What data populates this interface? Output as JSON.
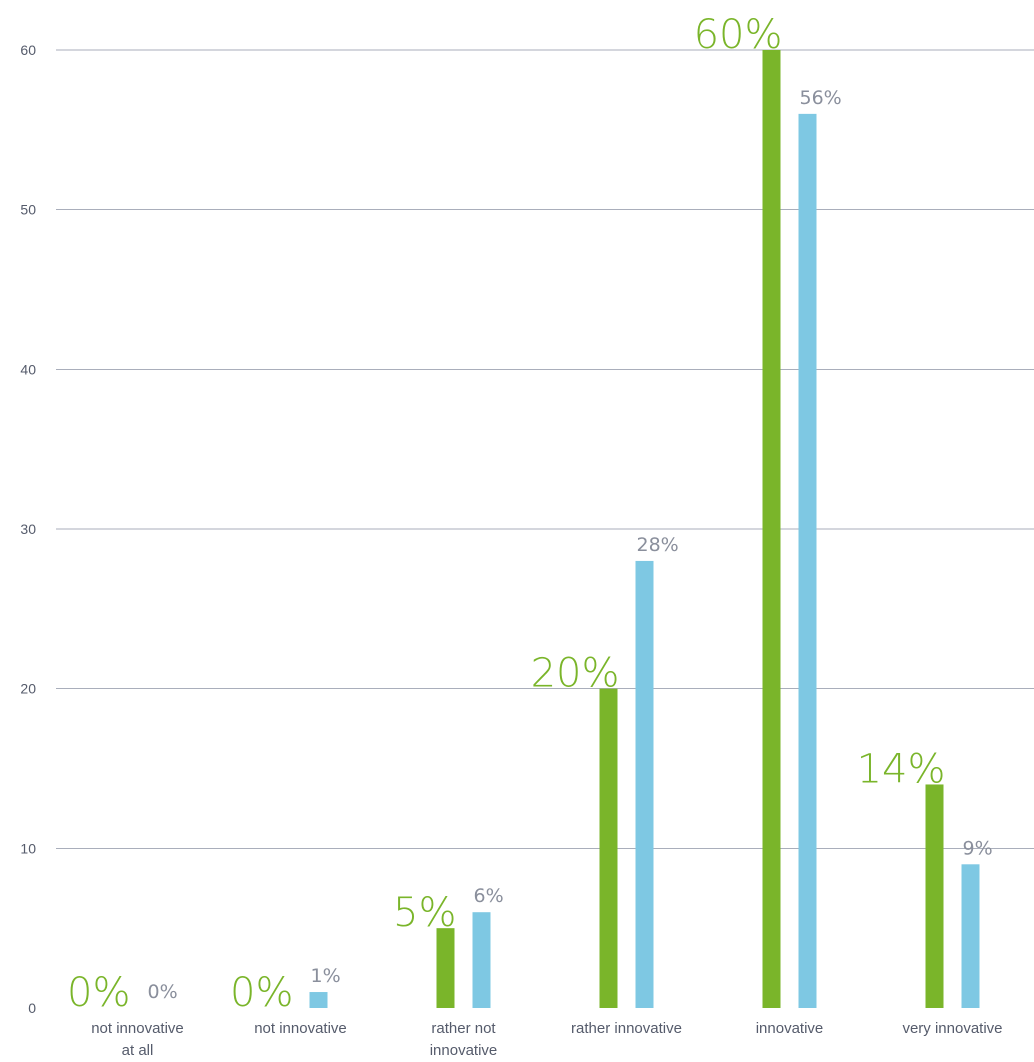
{
  "chart_data": {
    "type": "bar",
    "categories": [
      [
        "not innovative",
        "at all"
      ],
      [
        "not innovative"
      ],
      [
        "rather not",
        "innovative"
      ],
      [
        "rather innovative"
      ],
      [
        "innovative"
      ],
      [
        "very innovative"
      ]
    ],
    "series": [
      {
        "values": [
          0,
          0,
          5,
          20,
          60,
          14
        ],
        "labels": [
          "0%",
          "0%",
          "5%",
          "20%",
          "60%",
          "14%"
        ],
        "color": "#7ab52a"
      },
      {
        "values": [
          0,
          1,
          6,
          28,
          56,
          9
        ],
        "labels": [
          "0%",
          "1%",
          "6%",
          "28%",
          "56%",
          "9%"
        ],
        "color": "#7ec8e3"
      }
    ],
    "ylim": [
      0,
      60
    ],
    "yticks": [
      "0",
      "10",
      "20",
      "30",
      "40",
      "50",
      "60"
    ],
    "grid": true,
    "legend": "none"
  }
}
